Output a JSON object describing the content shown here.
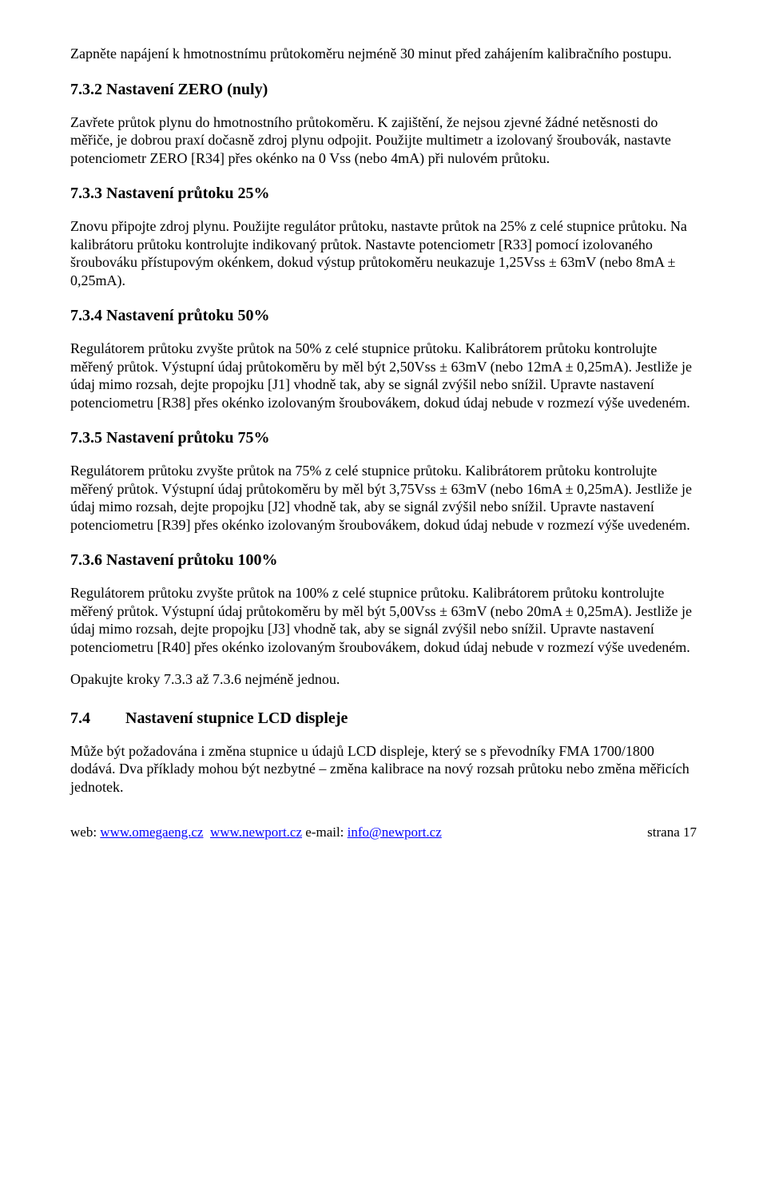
{
  "intro": {
    "p1": "Zapněte napájení k hmotnostnímu průtokoměru nejméně 30 minut před zahájením kalibračního postupu."
  },
  "s732": {
    "heading": "7.3.2  Nastavení ZERO (nuly)",
    "body": "Zavřete průtok plynu do hmotnostního průtokoměru. K zajištění, že nejsou zjevné žádné netěsnosti do měřiče, je dobrou praxí dočasně zdroj plynu odpojit. Použijte multimetr a izolovaný šroubovák, nastavte potenciometr ZERO [R34] přes okénko na 0 Vss (nebo 4mA) při nulovém průtoku."
  },
  "s733": {
    "heading": "7.3.3  Nastavení průtoku 25%",
    "body": "Znovu připojte zdroj plynu. Použijte regulátor průtoku, nastavte průtok na 25% z celé stupnice průtoku. Na kalibrátoru průtoku kontrolujte indikovaný průtok. Nastavte potenciometr  [R33] pomocí izolovaného šroubováku přístupovým okénkem, dokud výstup průtokoměru neukazuje 1,25Vss ± 63mV (nebo 8mA ± 0,25mA)."
  },
  "s734": {
    "heading": "7.3.4  Nastavení průtoku 50% ",
    "body": "Regulátorem průtoku zvyšte průtok na 50% z celé stupnice průtoku. Kalibrátorem průtoku kontrolujte měřený průtok. Výstupní údaj průtokoměru by měl být 2,50Vss ± 63mV (nebo 12mA ± 0,25mA). Jestliže je údaj mimo rozsah, dejte propojku [J1] vhodně tak, aby se signál zvýšil nebo snížil. Upravte nastavení potenciometru [R38] přes okénko izolovaným šroubovákem, dokud údaj nebude v rozmezí výše uvedeném."
  },
  "s735": {
    "heading": "7.3.5  Nastavení průtoku 75%",
    "body": "Regulátorem průtoku zvyšte průtok na 75% z celé stupnice průtoku. Kalibrátorem průtoku kontrolujte měřený průtok. Výstupní údaj průtokoměru by měl být 3,75Vss ± 63mV (nebo 16mA ± 0,25mA). Jestliže je údaj mimo rozsah, dejte propojku [J2] vhodně tak, aby se signál zvýšil nebo snížil. Upravte nastavení potenciometru [R39] přes okénko izolovaným šroubovákem, dokud údaj nebude v rozmezí výše uvedeném."
  },
  "s736": {
    "heading": "7.3.6  Nastavení průtoku 100%",
    "body": "Regulátorem průtoku zvyšte průtok na 100% z celé stupnice průtoku. Kalibrátorem průtoku kontrolujte měřený průtok. Výstupní údaj průtokoměru by měl být 5,00Vss ± 63mV (nebo 20mA ± 0,25mA). Jestliže je údaj mimo rozsah, dejte propojku [J3] vhodně tak, aby se signál zvýšil nebo snížil. Upravte nastavení potenciometru [R40] přes okénko izolovaným šroubovákem, dokud údaj nebude v rozmezí výše uvedeném.",
    "repeat": "Opakujte kroky 7.3.3  až 7.3.6 nejméně jednou."
  },
  "s74": {
    "heading_num": " 7.4",
    "heading_text": "Nastavení stupnice LCD displeje",
    "body": "Může být požadována i změna stupnice u údajů LCD displeje, který se s převodníky FMA 1700/1800 dodává. Dva příklady mohou být nezbytné – změna kalibrace na nový rozsah průtoku nebo změna měřicích jednotek."
  },
  "footer": {
    "web_label": "web: ",
    "link1": "www.omegaeng.cz",
    "link2": "www.newport.cz",
    "email_label": "     e-mail: ",
    "email": "info@newport.cz",
    "page": "strana 17"
  }
}
